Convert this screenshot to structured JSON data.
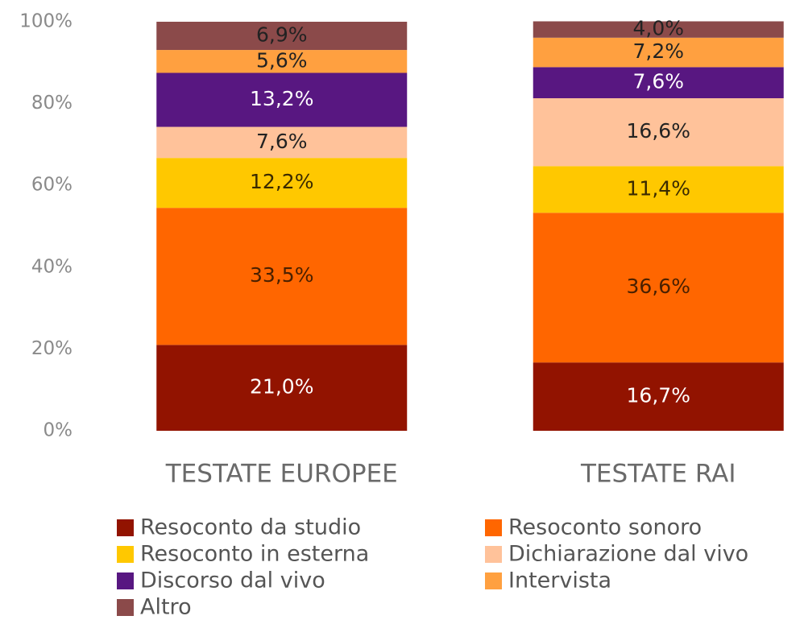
{
  "chart_data": {
    "type": "stacked_bar",
    "categories": [
      "TESTATE EUROPEE",
      "TESTATE RAI"
    ],
    "ylim": [
      0,
      100
    ],
    "yticks": [
      {
        "value": 0,
        "label": "0%"
      },
      {
        "value": 20,
        "label": "20%"
      },
      {
        "value": 40,
        "label": "40%"
      },
      {
        "value": 60,
        "label": "60%"
      },
      {
        "value": 80,
        "label": "80%"
      },
      {
        "value": 100,
        "label": "100%"
      }
    ],
    "grid": false,
    "legend": "bottom",
    "series": [
      {
        "name": "Resoconto da studio",
        "color": "#921300",
        "label_color": "#ffffff",
        "values": [
          21.0,
          16.7
        ],
        "value_labels": [
          "21,0%",
          "16,7%"
        ]
      },
      {
        "name": "Resoconto sonoro",
        "color": "#ff6600",
        "label_color": "#4a2000",
        "values": [
          33.5,
          36.6
        ],
        "value_labels": [
          "33,5%",
          "36,6%"
        ]
      },
      {
        "name": "Resoconto in esterna",
        "color": "#ffc800",
        "label_color": "#3a2a00",
        "values": [
          12.2,
          11.4
        ],
        "value_labels": [
          "12,2%",
          "11,4%"
        ]
      },
      {
        "name": "Dichiarazione dal vivo",
        "color": "#ffc29a",
        "label_color": "#222222",
        "values": [
          7.6,
          16.6
        ],
        "value_labels": [
          "7,6%",
          "16,6%"
        ]
      },
      {
        "name": "Discorso dal vivo",
        "color": "#581781",
        "label_color": "#ffffff",
        "values": [
          13.2,
          7.6
        ],
        "value_labels": [
          "13,2%",
          "7,6%"
        ]
      },
      {
        "name": "Intervista",
        "color": "#ffa040",
        "label_color": "#222222",
        "values": [
          5.6,
          7.2
        ],
        "value_labels": [
          "5,6%",
          "7,2%"
        ]
      },
      {
        "name": "Altro",
        "color": "#8b4a4a",
        "label_color": "#222222",
        "values": [
          6.9,
          4.0
        ],
        "value_labels": [
          "6,9%",
          "4,0%"
        ]
      }
    ]
  }
}
